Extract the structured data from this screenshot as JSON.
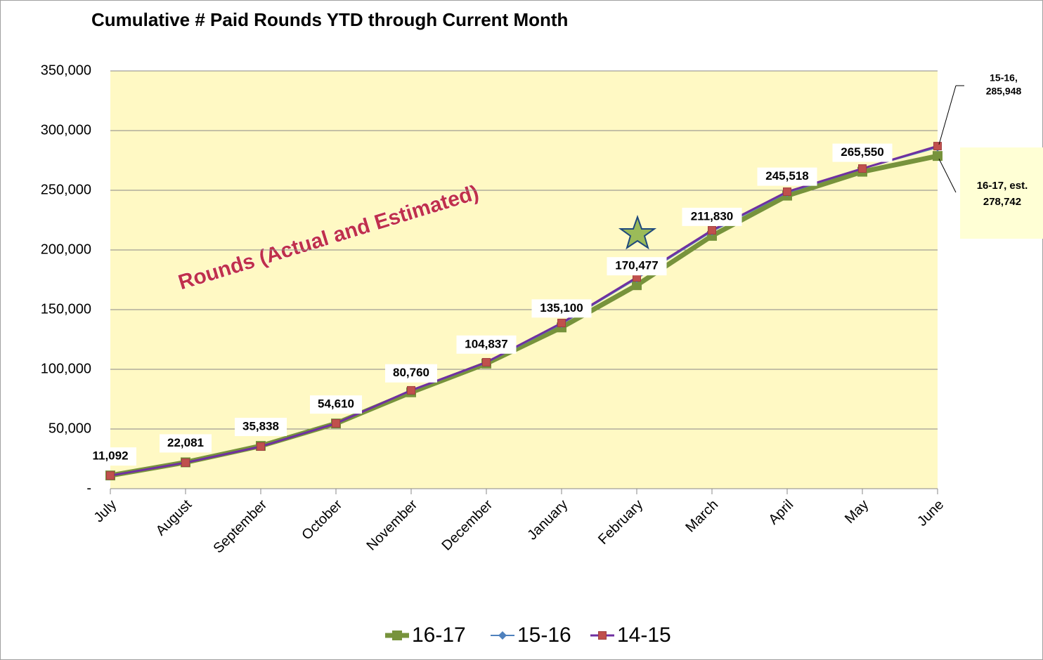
{
  "chart_data": {
    "type": "line",
    "title": "Cumulative # Paid Rounds YTD through Current Month",
    "watermark": "Rounds (Actual and Estimated)",
    "categories": [
      "July",
      "August",
      "September",
      "October",
      "November",
      "December",
      "January",
      "February",
      "March",
      "April",
      "May",
      "June"
    ],
    "series": [
      {
        "name": "16-17",
        "color": "#77933c",
        "marker_color": "#77933c",
        "marker": "square",
        "values": [
          11092,
          22081,
          35838,
          54610,
          80760,
          104837,
          135100,
          170477,
          211830,
          245518,
          265550,
          278742
        ],
        "value_labels": [
          "11,092",
          "22,081",
          "35,838",
          "54,610",
          "80,760",
          "104,837",
          "135,100",
          "170,477",
          "211,830",
          "245,518",
          "265,550",
          "278,742"
        ]
      },
      {
        "name": "15-16",
        "color": "#4f81bd",
        "marker_color": "#4f81bd",
        "marker": "diamond",
        "values": [
          11200,
          22000,
          35500,
          55000,
          82000,
          105500,
          138000,
          176000,
          215500,
          248000,
          268000,
          285948
        ],
        "value_labels": [
          null,
          null,
          null,
          null,
          null,
          null,
          null,
          null,
          null,
          null,
          null,
          "285,948"
        ]
      },
      {
        "name": "14-15",
        "color": "#7030a0",
        "marker_color": "#c0504d",
        "marker": "square",
        "values": [
          11000,
          21800,
          35300,
          54700,
          82400,
          105900,
          138800,
          177000,
          216500,
          248800,
          268200,
          287000
        ]
      }
    ],
    "callouts": [
      "16-17, est.",
      "15-16,"
    ],
    "ylim": [
      0,
      350000
    ],
    "yticks": [
      {
        "value": 0,
        "label": "-"
      },
      {
        "value": 50000,
        "label": "50,000"
      },
      {
        "value": 100000,
        "label": "100,000"
      },
      {
        "value": 150000,
        "label": "150,000"
      },
      {
        "value": 200000,
        "label": "200,000"
      },
      {
        "value": 250000,
        "label": "250,000"
      },
      {
        "value": 300000,
        "label": "300,000"
      },
      {
        "value": 350000,
        "label": "350,000"
      }
    ],
    "grid": true,
    "legend": "bottom"
  }
}
